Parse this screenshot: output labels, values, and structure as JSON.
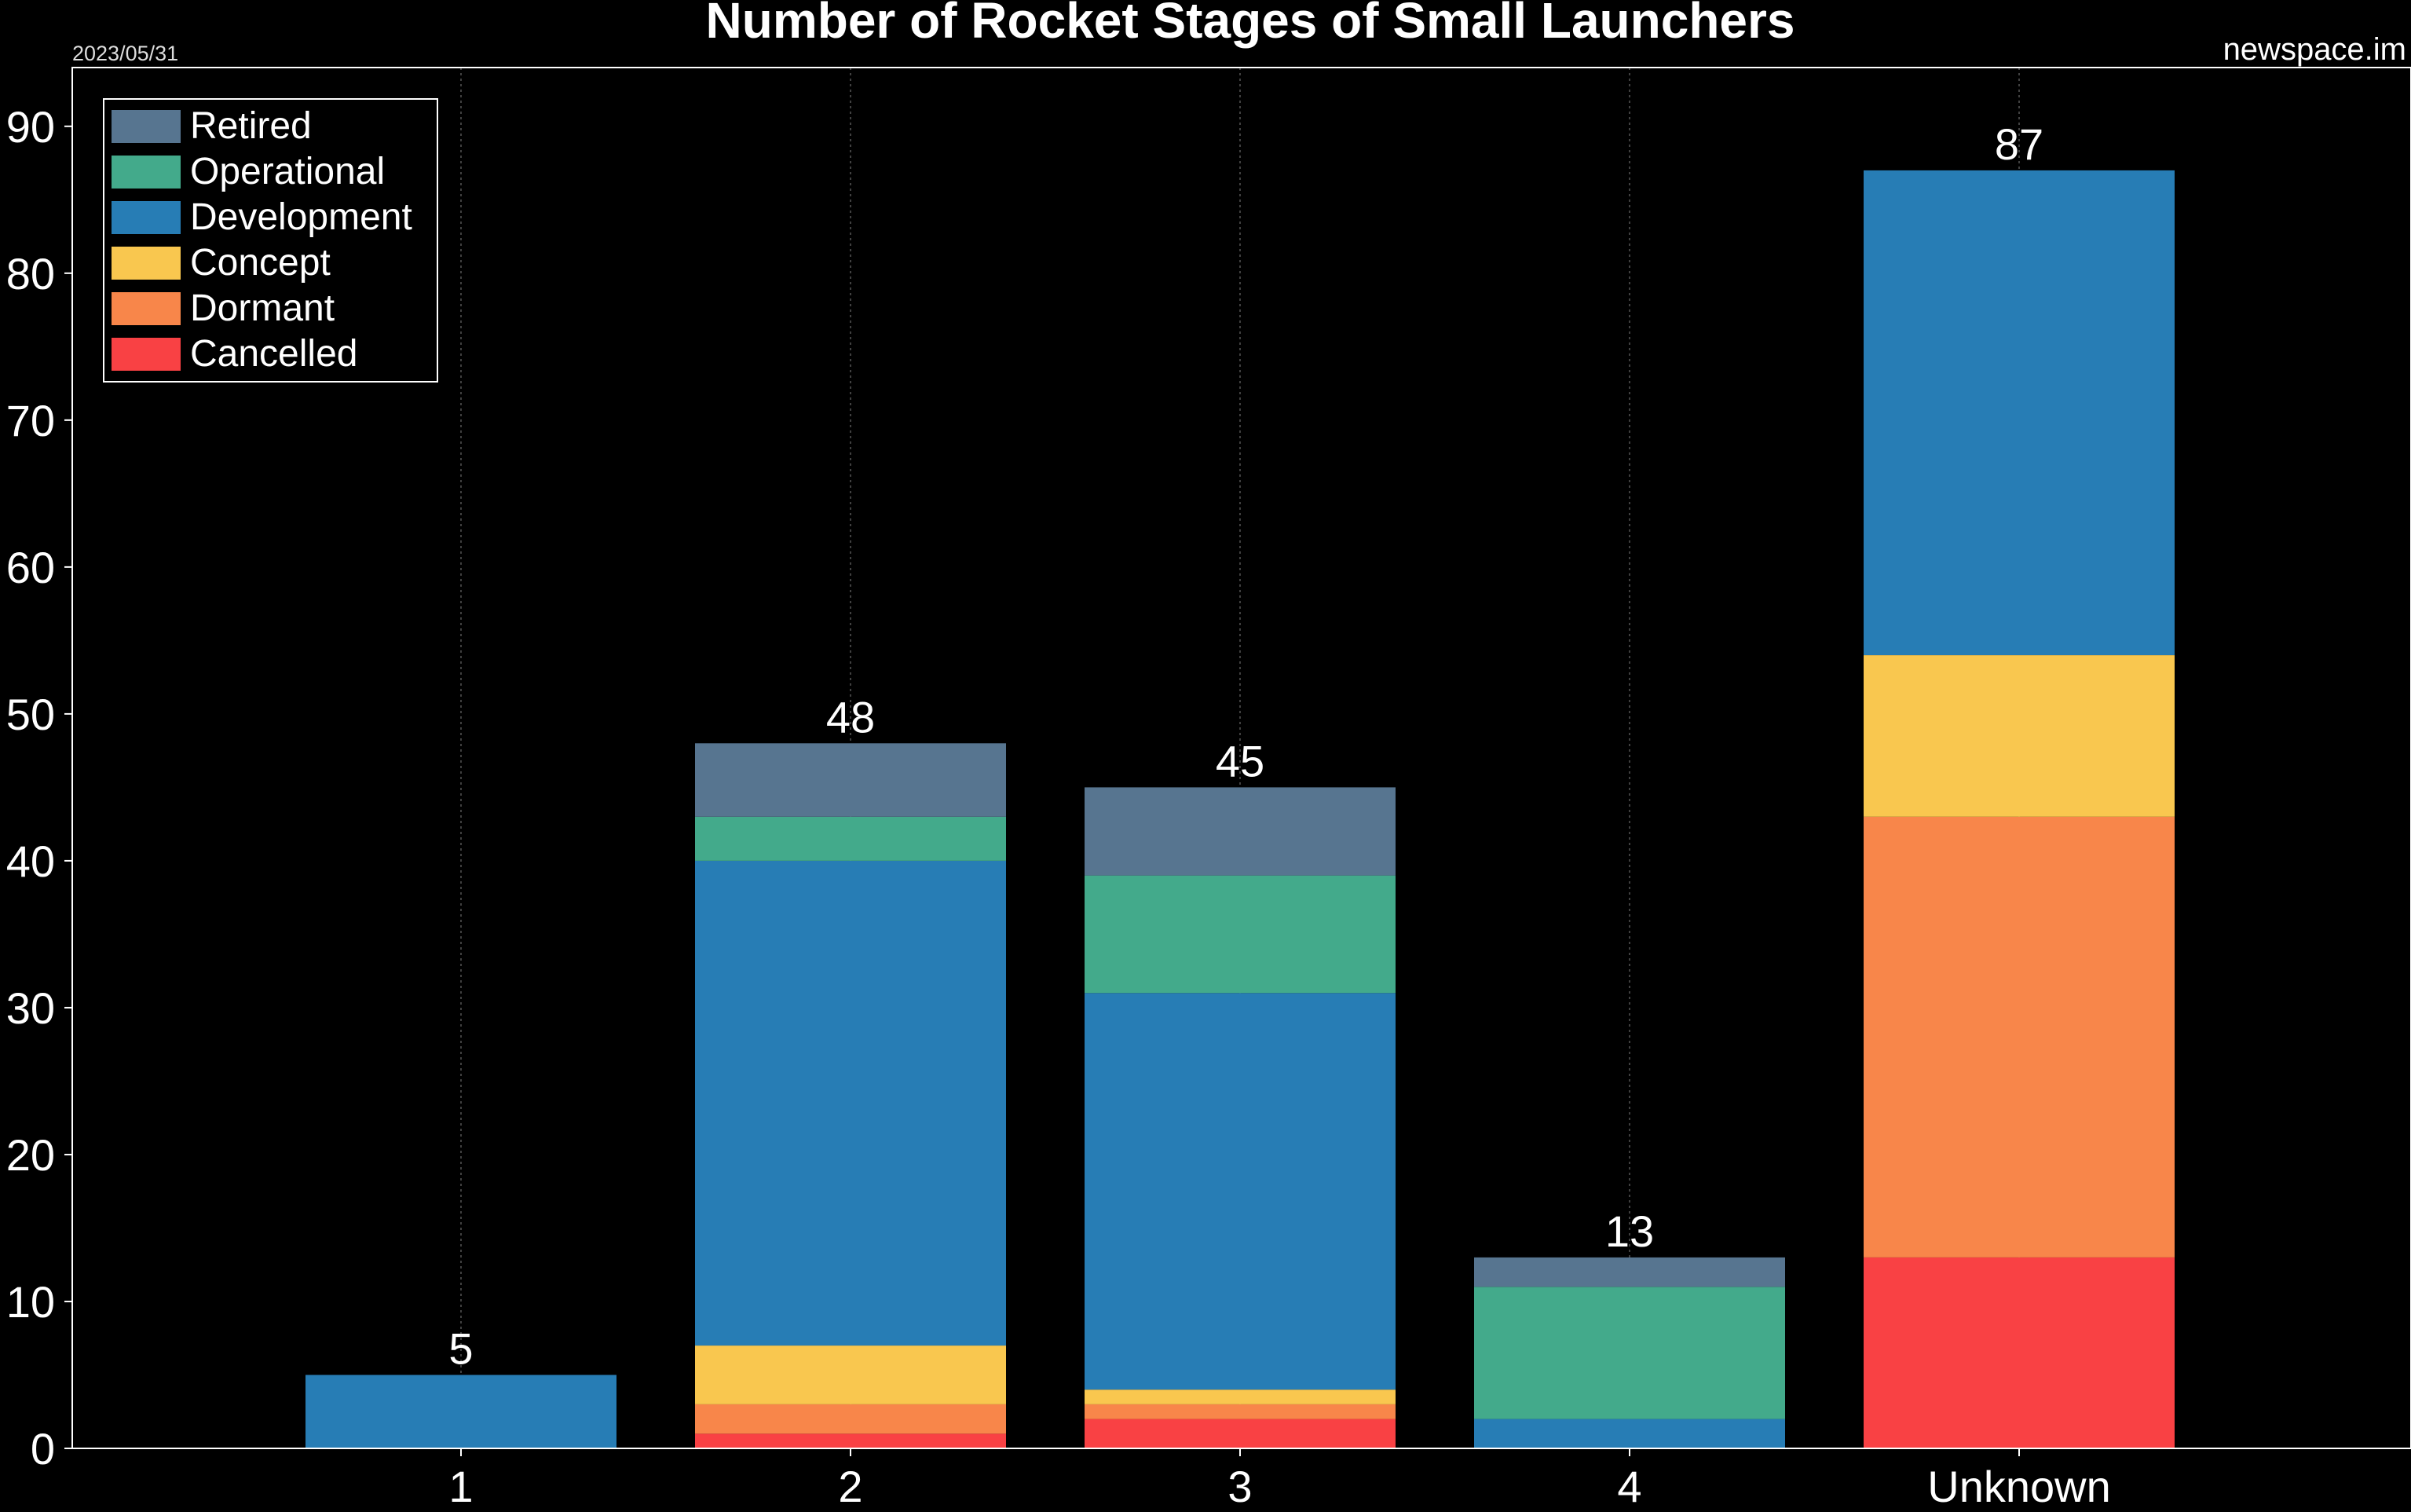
{
  "chart_data": {
    "type": "bar",
    "stacked": true,
    "title": "Number of Rocket Stages of Small Launchers",
    "date_label": "2023/05/31",
    "source_label": "newspace.im",
    "xlabel": "",
    "ylabel": "",
    "ylim": [
      0,
      94
    ],
    "yticks": [
      0,
      10,
      20,
      30,
      40,
      50,
      60,
      70,
      80,
      90
    ],
    "grid": "vertical dotted",
    "legend_position": "top-left",
    "categories": [
      "1",
      "2",
      "3",
      "4",
      "Unknown"
    ],
    "totals": [
      "5",
      "48",
      "45",
      "13",
      "87"
    ],
    "series": [
      {
        "name": "Cancelled",
        "color": "#f94144",
        "values": [
          0,
          1,
          2,
          0,
          13
        ]
      },
      {
        "name": "Dormant",
        "color": "#f8864a",
        "values": [
          0,
          2,
          1,
          0,
          30
        ]
      },
      {
        "name": "Concept",
        "color": "#f9c74f",
        "values": [
          0,
          4,
          1,
          0,
          11
        ]
      },
      {
        "name": "Development",
        "color": "#277db5",
        "values": [
          5,
          33,
          27,
          2,
          33
        ]
      },
      {
        "name": "Operational",
        "color": "#43aa8b",
        "values": [
          0,
          3,
          8,
          9,
          0
        ]
      },
      {
        "name": "Retired",
        "color": "#577590",
        "values": [
          0,
          5,
          6,
          2,
          0
        ]
      }
    ],
    "legend_order": [
      "Retired",
      "Operational",
      "Development",
      "Concept",
      "Dormant",
      "Cancelled"
    ]
  }
}
